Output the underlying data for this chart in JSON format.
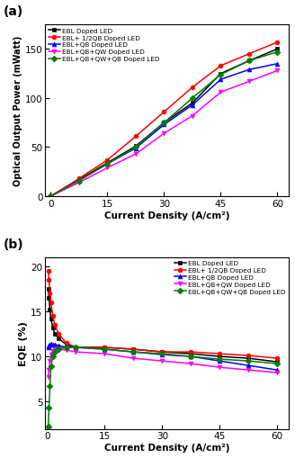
{
  "xlabel": "Current Density (A/cm²)",
  "ylabel_a": "Optical Output Power (mWatt)",
  "ylabel_b": "EQE (%)",
  "legend_labels": [
    "EBL Doped LED",
    "EBL+ 1/2QB Doped LED",
    "EBL+QB Doped LED",
    "EBL+QB+QW Doped LED",
    "EBL+QB+QW+QB Doped LED"
  ],
  "colors": [
    "#000000",
    "#ff0000",
    "#0000ff",
    "#ff00ff",
    "#008000"
  ],
  "markers": [
    "s",
    "o",
    "^",
    "v",
    "D"
  ],
  "marker_size": 3.5,
  "linewidth": 1.1,
  "plot_a": {
    "x": [
      0,
      7.5,
      15,
      22.5,
      30,
      37.5,
      45,
      52.5,
      60
    ],
    "y_ebl": [
      0,
      17,
      34,
      51,
      75,
      95,
      125,
      138,
      150
    ],
    "y_half_qb": [
      0,
      18,
      37,
      61,
      86,
      111,
      133,
      145,
      157
    ],
    "y_qb": [
      0,
      16,
      33,
      49,
      73,
      93,
      119,
      129,
      135
    ],
    "y_qw": [
      0,
      14,
      29,
      43,
      64,
      82,
      106,
      117,
      128
    ],
    "y_qb_qw_qb": [
      0,
      16,
      33,
      50,
      75,
      100,
      124,
      138,
      147
    ]
  },
  "plot_b": {
    "x_all": [
      0.3,
      0.5,
      0.75,
      1.0,
      1.5,
      2.0,
      3.0,
      5.0,
      7.5,
      15,
      22.5,
      30,
      37.5,
      45,
      52.5,
      60
    ],
    "y_ebl": [
      17.5,
      16.5,
      15.2,
      14.2,
      13.2,
      12.5,
      12.0,
      11.3,
      11.0,
      11.0,
      10.8,
      10.5,
      10.3,
      10.0,
      9.8,
      9.4
    ],
    "y_half_qb": [
      19.5,
      18.5,
      17.0,
      16.0,
      14.5,
      13.5,
      12.5,
      11.5,
      11.0,
      11.0,
      10.8,
      10.5,
      10.5,
      10.3,
      10.1,
      9.8
    ],
    "y_qb": [
      11.0,
      11.2,
      11.3,
      11.4,
      11.3,
      11.3,
      11.2,
      11.0,
      11.0,
      10.8,
      10.5,
      10.2,
      10.0,
      9.5,
      9.0,
      8.5
    ],
    "y_qw": [
      7.7,
      8.5,
      9.5,
      10.2,
      10.6,
      10.8,
      10.8,
      10.7,
      10.5,
      10.3,
      9.8,
      9.5,
      9.2,
      8.8,
      8.5,
      8.2
    ],
    "y_qb_qw_qb": [
      2.2,
      4.3,
      6.7,
      8.9,
      10.0,
      10.5,
      10.8,
      11.0,
      11.0,
      10.8,
      10.5,
      10.3,
      10.0,
      9.7,
      9.5,
      9.2
    ]
  },
  "ylim_a": [
    0,
    175
  ],
  "ylim_b": [
    2,
    21
  ],
  "yticks_a": [
    0,
    50,
    100,
    150
  ],
  "yticks_b": [
    5,
    10,
    15,
    20
  ],
  "xticks_a": [
    0,
    15,
    30,
    45,
    60
  ],
  "xticks_b": [
    0,
    15,
    30,
    45,
    60
  ],
  "xlim_a": [
    -1.5,
    63
  ],
  "xlim_b": [
    -0.5,
    63
  ]
}
